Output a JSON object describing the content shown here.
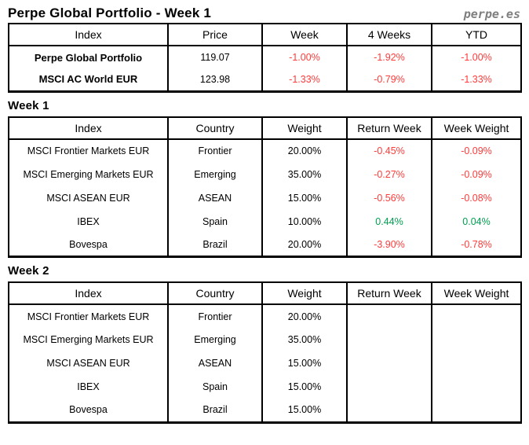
{
  "page": {
    "title": "Perpe Global Portfolio - Week 1",
    "logo": "perpe.es"
  },
  "colors": {
    "negative": "#ff3b3b",
    "positive": "#00a050",
    "text": "#000000",
    "logo_gray": "#7f7f7f",
    "border": "#000000"
  },
  "summary_table": {
    "headers": [
      "Index",
      "Price",
      "Week",
      "4 Weeks",
      "YTD"
    ],
    "rows": [
      {
        "index": "Perpe Global Portfolio",
        "price": "119.07",
        "week": "-1.00%",
        "four_weeks": "-1.92%",
        "ytd": "-1.00%"
      },
      {
        "index": "MSCI AC World EUR",
        "price": "123.98",
        "week": "-1.33%",
        "four_weeks": "-0.79%",
        "ytd": "-1.33%"
      }
    ]
  },
  "week1": {
    "heading": "Week 1",
    "headers": [
      "Index",
      "Country",
      "Weight",
      "Return Week",
      "Week Weight"
    ],
    "rows": [
      {
        "index": "MSCI Frontier Markets EUR",
        "country": "Frontier",
        "weight": "20.00%",
        "return_week": "-0.45%",
        "week_weight": "-0.09%"
      },
      {
        "index": "MSCI Emerging Markets EUR",
        "country": "Emerging",
        "weight": "35.00%",
        "return_week": "-0.27%",
        "week_weight": "-0.09%"
      },
      {
        "index": "MSCI ASEAN EUR",
        "country": "ASEAN",
        "weight": "15.00%",
        "return_week": "-0.56%",
        "week_weight": "-0.08%"
      },
      {
        "index": "IBEX",
        "country": "Spain",
        "weight": "10.00%",
        "return_week": "0.44%",
        "week_weight": "0.04%"
      },
      {
        "index": "Bovespa",
        "country": "Brazil",
        "weight": "20.00%",
        "return_week": "-3.90%",
        "week_weight": "-0.78%"
      }
    ]
  },
  "week2": {
    "heading": "Week 2",
    "headers": [
      "Index",
      "Country",
      "Weight",
      "Return Week",
      "Week Weight"
    ],
    "rows": [
      {
        "index": "MSCI Frontier Markets EUR",
        "country": "Frontier",
        "weight": "20.00%",
        "return_week": "",
        "week_weight": ""
      },
      {
        "index": "MSCI Emerging Markets EUR",
        "country": "Emerging",
        "weight": "35.00%",
        "return_week": "",
        "week_weight": ""
      },
      {
        "index": "MSCI ASEAN EUR",
        "country": "ASEAN",
        "weight": "15.00%",
        "return_week": "",
        "week_weight": ""
      },
      {
        "index": "IBEX",
        "country": "Spain",
        "weight": "15.00%",
        "return_week": "",
        "week_weight": ""
      },
      {
        "index": "Bovespa",
        "country": "Brazil",
        "weight": "15.00%",
        "return_week": "",
        "week_weight": ""
      }
    ]
  }
}
